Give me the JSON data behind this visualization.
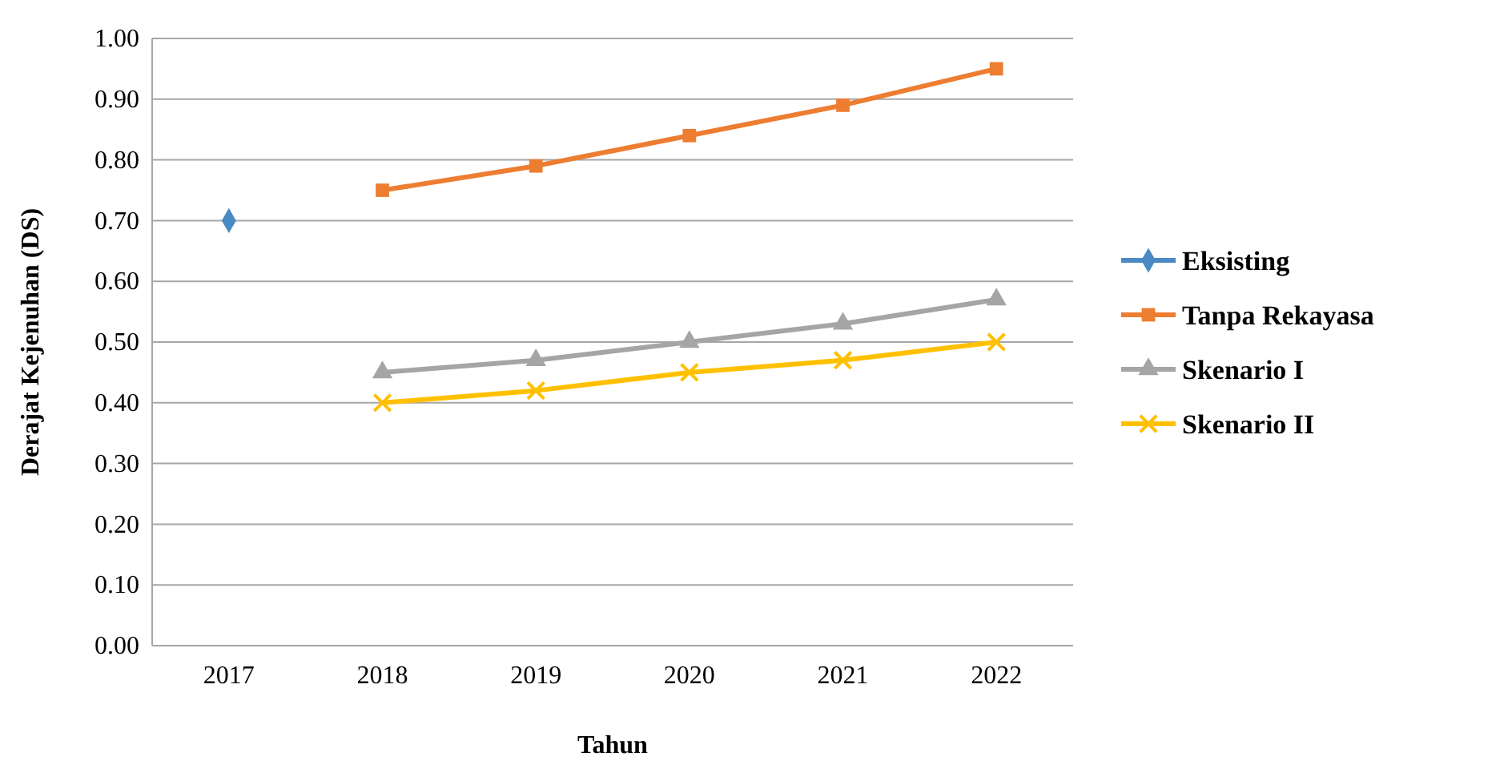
{
  "chart_data": {
    "type": "line",
    "xlabel": "Tahun",
    "ylabel": "Derajat Kejenuhan (DS)",
    "categories": [
      "2017",
      "2018",
      "2019",
      "2020",
      "2021",
      "2022"
    ],
    "ylim": [
      0,
      1
    ],
    "yticks": [
      {
        "value": 0,
        "label": "0.00"
      },
      {
        "value": 0.1,
        "label": "0.10"
      },
      {
        "value": 0.2,
        "label": "0.20"
      },
      {
        "value": 0.3,
        "label": "0.30"
      },
      {
        "value": 0.4,
        "label": "0.40"
      },
      {
        "value": 0.5,
        "label": "0.50"
      },
      {
        "value": 0.6,
        "label": "0.60"
      },
      {
        "value": 0.7,
        "label": "0.70"
      },
      {
        "value": 0.8,
        "label": "0.80"
      },
      {
        "value": 0.9,
        "label": "0.90"
      },
      {
        "value": 1,
        "label": "1.00"
      }
    ],
    "grid": "y",
    "legend": "right",
    "line_style": "solid",
    "series": [
      {
        "name": "Eksisting",
        "color": "#4a8ac4",
        "marker": "diamond",
        "values": [
          0.7,
          null,
          null,
          null,
          null,
          null
        ]
      },
      {
        "name": "Tanpa Rekayasa",
        "color": "#ed7d31",
        "marker": "square",
        "values": [
          null,
          0.75,
          0.79,
          0.84,
          0.89,
          0.95
        ]
      },
      {
        "name": "Skenario I",
        "color": "#a5a5a5",
        "marker": "triangle",
        "values": [
          null,
          0.45,
          0.47,
          0.5,
          0.53,
          0.57
        ]
      },
      {
        "name": "Skenario II",
        "color": "#ffc000",
        "marker": "cross",
        "values": [
          null,
          0.4,
          0.42,
          0.45,
          0.47,
          0.5
        ]
      }
    ]
  }
}
